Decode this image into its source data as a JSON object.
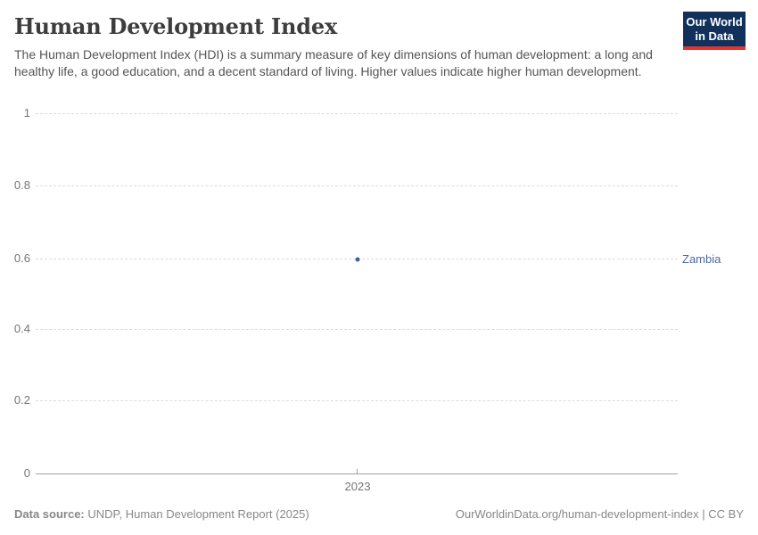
{
  "header": {
    "title": "Human Development Index",
    "subtitle": "The Human Development Index (HDI) is a summary measure of key dimensions of human development: a long and healthy life, a good education, and a decent standard of living. Higher values indicate higher human development."
  },
  "logo": {
    "line1": "Our World",
    "line2": "in Data"
  },
  "chart": {
    "y_tick_labels": [
      "1",
      "0.8",
      "0.6",
      "0.4",
      "0.2",
      "0"
    ],
    "x_tick_label": "2023",
    "entity_label": "Zambia"
  },
  "chart_data": {
    "type": "scatter",
    "title": "Human Development Index",
    "x": [
      2023
    ],
    "series": [
      {
        "name": "Zambia",
        "values": [
          0.595
        ]
      }
    ],
    "xlabel": "",
    "ylabel": "",
    "ylim": [
      0,
      1
    ],
    "yticks": [
      0,
      0.2,
      0.4,
      0.6,
      0.8,
      1
    ],
    "xticks": [
      2023
    ],
    "grid": "horizontal-dashed",
    "legend_position": "right-of-point"
  },
  "footer": {
    "datasource_label": "Data source:",
    "datasource_text": "UNDP, Human Development Report (2025)",
    "credit": "OurWorldinData.org/human-development-index | CC BY"
  },
  "colors": {
    "accent_blue": "#4c6a9c",
    "point_blue": "#3d63a2",
    "logo_navy": "#12305c",
    "logo_red": "#e5352b",
    "gridline": "#dcdcdc"
  }
}
